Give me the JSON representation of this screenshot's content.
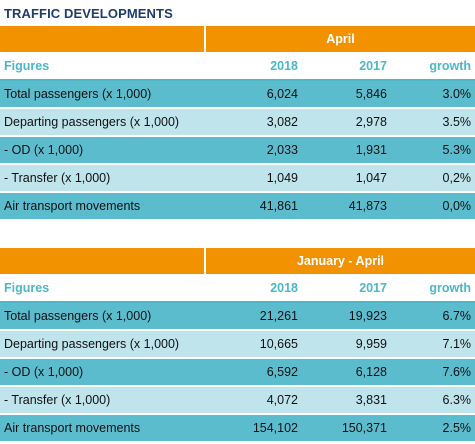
{
  "title": "TRAFFIC DEVELOPMENTS",
  "tables": [
    {
      "period": "April",
      "header": {
        "figures": "Figures",
        "year1": "2018",
        "year2": "2017",
        "growth": "growth"
      },
      "rows": [
        {
          "label": "Total passengers (x 1,000)",
          "v2018": "6,024",
          "v2017": "5,846",
          "growth": "3.0%"
        },
        {
          "label": "Departing passengers (x 1,000)",
          "v2018": "3,082",
          "v2017": "2,978",
          "growth": "3.5%"
        },
        {
          "label": "- OD (x 1,000)",
          "v2018": "2,033",
          "v2017": "1,931",
          "growth": "5.3%"
        },
        {
          "label": "- Transfer  (x 1,000)",
          "v2018": "1,049",
          "v2017": "1,047",
          "growth": "0,2%"
        },
        {
          "label": "Air transport movements",
          "v2018": "41,861",
          "v2017": "41,873",
          "growth": "0,0%"
        }
      ]
    },
    {
      "period": "January - April",
      "header": {
        "figures": "Figures",
        "year1": "2018",
        "year2": "2017",
        "growth": "growth"
      },
      "rows": [
        {
          "label": "Total passengers (x 1,000)",
          "v2018": "21,261",
          "v2017": "19,923",
          "growth": "6.7%"
        },
        {
          "label": "Departing passengers (x 1,000)",
          "v2018": "10,665",
          "v2017": "9,959",
          "growth": "7.1%"
        },
        {
          "label": "- OD (x 1,000)",
          "v2018": "6,592",
          "v2017": "6,128",
          "growth": "7.6%"
        },
        {
          "label": "- Transfer  (x 1,000)",
          "v2018": "4,072",
          "v2017": "3,831",
          "growth": "6.3%"
        },
        {
          "label": "Air transport movements",
          "v2018": "154,102",
          "v2017": "150,371",
          "growth": "2.5%"
        }
      ]
    }
  ],
  "colors": {
    "header_orange": "#f39200",
    "figures_text": "#4cb8c8",
    "row_dark": "#5bbccd",
    "row_light": "#bfe4eb",
    "title": "#1f3d6b"
  }
}
